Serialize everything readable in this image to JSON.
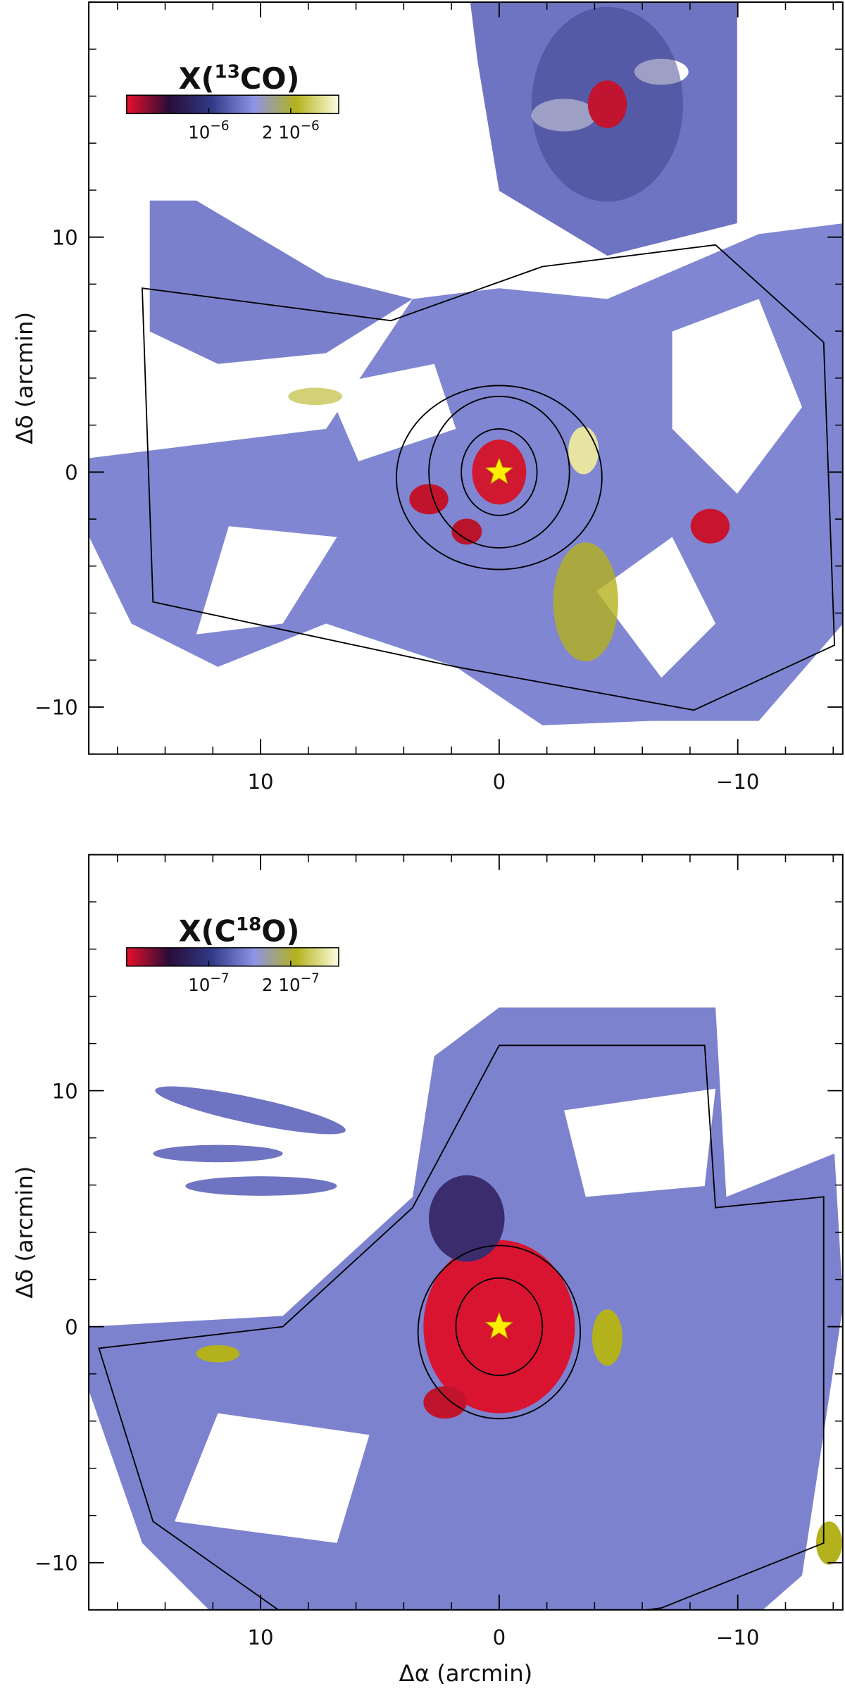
{
  "chart_data": [
    {
      "type": "map",
      "title": [
        "X(",
        "13",
        "CO)"
      ],
      "ylabel": "Δδ (arcmin)",
      "xlim": [
        17.2,
        -14.4
      ],
      "ylim": [
        -12,
        20
      ],
      "xticks": [
        10,
        0,
        {
          "value": -10,
          "label": "−10"
        }
      ],
      "yticks": [
        {
          "value": -10,
          "label": "−10"
        },
        0,
        10
      ],
      "xticks_minor": [
        16,
        14,
        12,
        8,
        6,
        4,
        2,
        -2,
        -4,
        -6,
        -8,
        -12,
        -14
      ],
      "yticks_minor": [
        -12,
        -8,
        -6,
        -4,
        -2,
        2,
        4,
        6,
        8,
        12,
        14,
        16,
        18,
        20
      ],
      "colorbar": {
        "colors": [
          "#e8102a",
          "#2a0c38",
          "#2f3a86",
          "#8d93e6",
          "#b4b21c",
          "#fdfde0"
        ],
        "log": true,
        "lim": [
          5e-07,
          3e-06
        ],
        "ticks": [
          {
            "value": 1e-06,
            "label": [
              "10",
              "−6"
            ]
          },
          {
            "value": 2e-06,
            "label": [
              "2 10",
              "−6"
            ]
          }
        ]
      },
      "marker": {
        "x": 0,
        "y": 0,
        "color": "#ffee00"
      }
    },
    {
      "type": "map",
      "title": [
        "X(C",
        "18",
        "O)"
      ],
      "ylabel": "Δδ (arcmin)",
      "xlabel": "Δα (arcmin)",
      "xlim": [
        17.2,
        -14.4
      ],
      "ylim": [
        -12,
        20
      ],
      "xticks": [
        10,
        0,
        {
          "value": -10,
          "label": "−10"
        }
      ],
      "yticks": [
        {
          "value": -10,
          "label": "−10"
        },
        0,
        10
      ],
      "xticks_minor": [
        16,
        14,
        12,
        8,
        6,
        4,
        2,
        -2,
        -4,
        -6,
        -8,
        -12,
        -14
      ],
      "yticks_minor": [
        -12,
        -8,
        -6,
        -4,
        -2,
        2,
        4,
        6,
        8,
        12,
        14,
        16,
        18,
        20
      ],
      "colorbar": {
        "colors": [
          "#e8102a",
          "#2a0c38",
          "#2f3a86",
          "#8d93e6",
          "#b4b21c",
          "#fdfde0"
        ],
        "log": true,
        "lim": [
          5e-08,
          3e-07
        ],
        "ticks": [
          {
            "value": 1e-07,
            "label": [
              "10",
              "−7"
            ]
          },
          {
            "value": 2e-07,
            "label": [
              "2 10",
              "−7"
            ]
          }
        ]
      },
      "marker": {
        "x": 0,
        "y": 0,
        "color": "#ffee00"
      }
    }
  ]
}
